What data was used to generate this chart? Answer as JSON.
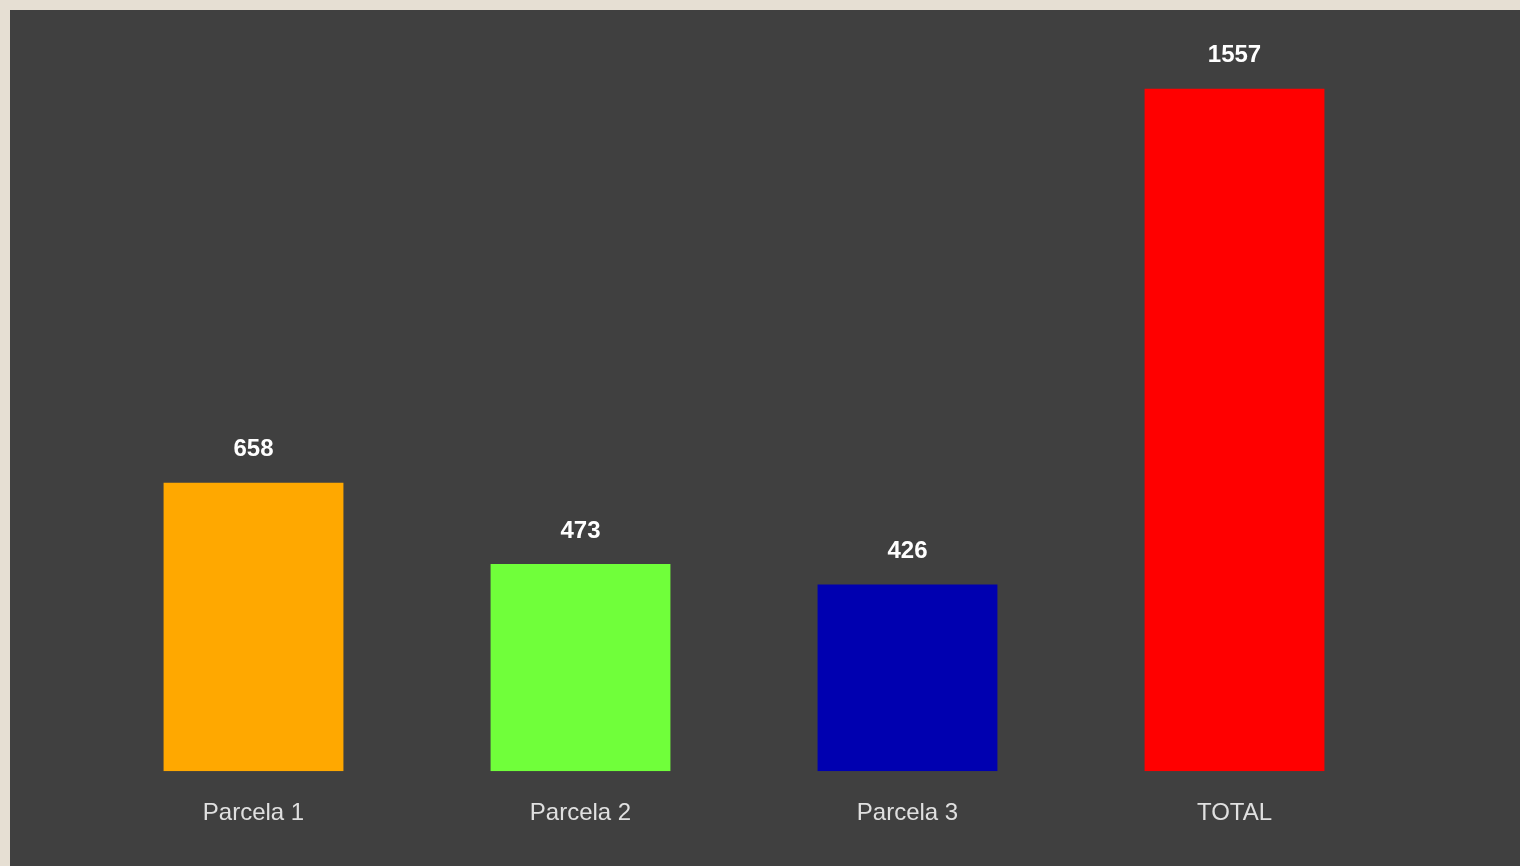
{
  "chart_data": {
    "type": "bar",
    "categories": [
      "Parcela 1",
      "Parcela 2",
      "Parcela 3",
      "TOTAL"
    ],
    "values": [
      658,
      473,
      426,
      1557
    ],
    "colors": [
      "#ffa800",
      "#70ff3a",
      "#0000b0",
      "#ff0000"
    ],
    "data_labels": true,
    "grid": false,
    "legend": false
  }
}
